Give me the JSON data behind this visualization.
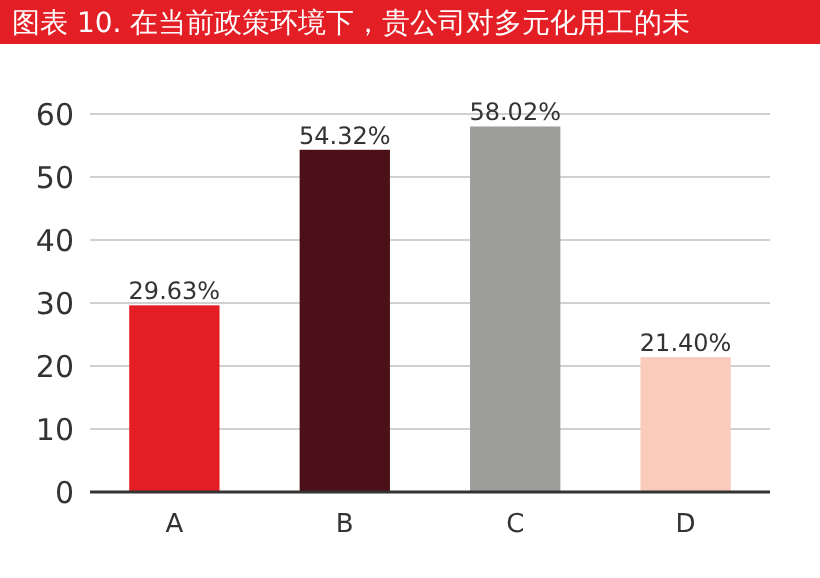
{
  "chart_data": {
    "type": "bar",
    "title": "图表 10.  在当前政策环境下，贵公司对多元化用工的未",
    "categories": [
      "A",
      "B",
      "C",
      "D"
    ],
    "values": [
      29.63,
      54.32,
      58.02,
      21.4
    ],
    "colors": [
      "#e31e24",
      "#4c1118",
      "#9d9d9c",
      "#f9cbbb"
    ],
    "value_labels": [
      "29.63%",
      "54.32%",
      "58.02%",
      "21.40%"
    ],
    "ylim": [
      0,
      60
    ],
    "yticks": [
      0,
      10,
      20,
      30,
      40,
      50,
      60
    ],
    "grid": "y"
  }
}
